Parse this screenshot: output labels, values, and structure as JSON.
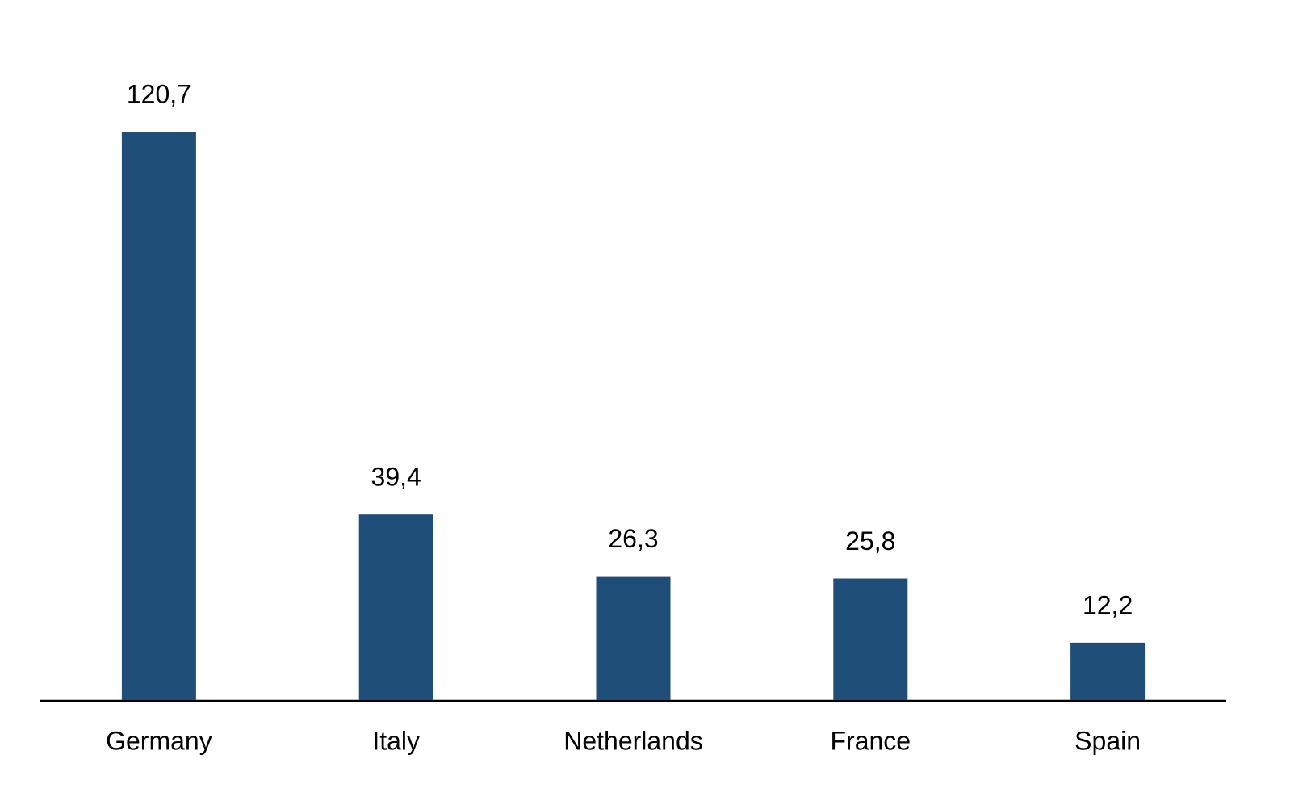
{
  "chart_data": {
    "type": "bar",
    "categories": [
      "Germany",
      "Italy",
      "Netherlands",
      "France",
      "Spain"
    ],
    "values": [
      120.7,
      39.4,
      26.3,
      25.8,
      12.2
    ],
    "value_labels": [
      "120,7",
      "39,4",
      "26,3",
      "25,8",
      "12,2"
    ],
    "color": "#1f4e79"
  }
}
